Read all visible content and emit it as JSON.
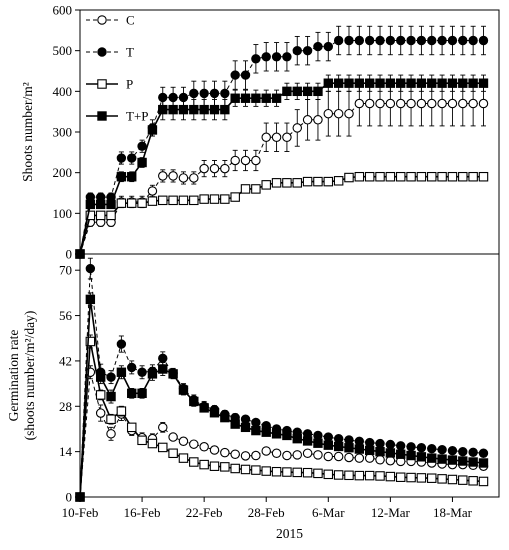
{
  "chart_data": [
    {
      "type": "line",
      "ylabel": "Shoots number/m²",
      "ylim": [
        0,
        600
      ],
      "yticks": [
        0,
        100,
        200,
        300,
        400,
        500,
        600
      ],
      "xlim": [
        0,
        40.5
      ],
      "grid": false,
      "legend_position": "top-left",
      "series": [
        {
          "name": "C",
          "marker": "open-circle",
          "line": "dashed",
          "color": "#000000",
          "x": [
            0,
            1,
            2,
            3,
            4,
            5,
            6,
            7,
            8,
            9,
            10,
            11,
            12,
            13,
            14,
            15,
            16,
            17,
            18,
            19,
            20,
            21,
            22,
            23,
            24,
            25,
            26,
            27,
            28,
            29,
            30,
            31,
            32,
            33,
            34,
            35,
            36,
            37,
            38,
            39
          ],
          "y": [
            0,
            78,
            78,
            78,
            128,
            128,
            128,
            155,
            192,
            192,
            187,
            187,
            210,
            210,
            210,
            230,
            230,
            230,
            287,
            287,
            287,
            310,
            330,
            330,
            345,
            345,
            345,
            370,
            370,
            370,
            370,
            370,
            370,
            370,
            370,
            370,
            370,
            370,
            370,
            370
          ],
          "err": [
            0,
            10,
            10,
            10,
            14,
            14,
            14,
            14,
            15,
            15,
            15,
            15,
            20,
            20,
            20,
            25,
            25,
            25,
            35,
            35,
            35,
            45,
            50,
            50,
            55,
            55,
            55,
            55,
            55,
            55,
            55,
            55,
            55,
            55,
            55,
            55,
            55,
            55,
            55,
            55
          ]
        },
        {
          "name": "T",
          "marker": "filled-circle",
          "line": "dashed",
          "color": "#000000",
          "x": [
            0,
            1,
            2,
            3,
            4,
            5,
            6,
            7,
            8,
            9,
            10,
            11,
            12,
            13,
            14,
            15,
            16,
            17,
            18,
            19,
            20,
            21,
            22,
            23,
            24,
            25,
            26,
            27,
            28,
            29,
            30,
            31,
            32,
            33,
            34,
            35,
            36,
            37,
            38,
            39
          ],
          "y": [
            0,
            140,
            140,
            140,
            236,
            236,
            265,
            310,
            385,
            385,
            385,
            395,
            395,
            395,
            395,
            440,
            440,
            480,
            485,
            485,
            485,
            500,
            500,
            510,
            510,
            525,
            525,
            525,
            525,
            525,
            525,
            525,
            525,
            525,
            525,
            525,
            525,
            525,
            525,
            525
          ],
          "err": [
            0,
            10,
            10,
            10,
            15,
            15,
            15,
            20,
            25,
            25,
            25,
            30,
            30,
            30,
            30,
            35,
            35,
            35,
            35,
            35,
            35,
            35,
            35,
            35,
            35,
            35,
            35,
            35,
            35,
            35,
            35,
            35,
            35,
            35,
            35,
            35,
            35,
            35,
            35,
            35
          ]
        },
        {
          "name": "P",
          "marker": "open-square",
          "line": "solid",
          "color": "#000000",
          "x": [
            0,
            1,
            2,
            3,
            4,
            5,
            6,
            7,
            8,
            9,
            10,
            11,
            12,
            13,
            14,
            15,
            16,
            17,
            18,
            19,
            20,
            21,
            22,
            23,
            24,
            25,
            26,
            27,
            28,
            29,
            30,
            31,
            32,
            33,
            34,
            35,
            36,
            37,
            38,
            39
          ],
          "y": [
            0,
            95,
            95,
            95,
            125,
            125,
            125,
            130,
            132,
            132,
            132,
            132,
            135,
            135,
            135,
            140,
            160,
            160,
            170,
            175,
            175,
            175,
            178,
            178,
            178,
            180,
            188,
            190,
            190,
            190,
            190,
            190,
            190,
            190,
            190,
            190,
            190,
            190,
            190,
            190
          ],
          "err": [
            0,
            8,
            8,
            8,
            8,
            8,
            8,
            8,
            8,
            8,
            8,
            8,
            8,
            8,
            8,
            8,
            8,
            8,
            10,
            10,
            10,
            10,
            10,
            10,
            10,
            10,
            10,
            10,
            10,
            10,
            10,
            10,
            10,
            10,
            10,
            10,
            10,
            10,
            10,
            10
          ]
        },
        {
          "name": "T+P",
          "marker": "filled-square",
          "line": "solid",
          "color": "#000000",
          "x": [
            0,
            1,
            2,
            3,
            4,
            5,
            6,
            7,
            8,
            9,
            10,
            11,
            12,
            13,
            14,
            15,
            16,
            17,
            18,
            19,
            20,
            21,
            22,
            23,
            24,
            25,
            26,
            27,
            28,
            29,
            30,
            31,
            32,
            33,
            34,
            35,
            36,
            37,
            38,
            39
          ],
          "y": [
            0,
            122,
            122,
            122,
            190,
            190,
            225,
            305,
            355,
            355,
            355,
            355,
            355,
            355,
            355,
            383,
            383,
            383,
            383,
            383,
            400,
            400,
            400,
            400,
            420,
            420,
            420,
            420,
            420,
            420,
            420,
            420,
            420,
            420,
            420,
            420,
            420,
            420,
            420,
            420
          ],
          "err": [
            0,
            10,
            10,
            10,
            12,
            12,
            12,
            15,
            25,
            25,
            25,
            25,
            25,
            25,
            25,
            20,
            20,
            20,
            20,
            20,
            20,
            20,
            20,
            20,
            20,
            20,
            20,
            20,
            20,
            20,
            20,
            20,
            20,
            20,
            20,
            20,
            20,
            20,
            20,
            20
          ]
        }
      ]
    },
    {
      "type": "line",
      "ylabel": "Germination rate",
      "ylabel2": "(shoots number/m²/day)",
      "ylim": [
        0,
        75
      ],
      "yticks": [
        0,
        14,
        28,
        42,
        56,
        70
      ],
      "xlim": [
        0,
        40.5
      ],
      "xlabel": "2015",
      "xticks": [
        0,
        6,
        12,
        18,
        24,
        30,
        36
      ],
      "xticklabels": [
        "10-Feb",
        "16-Feb",
        "22-Feb",
        "28-Feb",
        "6-Mar",
        "12-Mar",
        "18-Mar"
      ],
      "grid": false,
      "series": [
        {
          "name": "C",
          "marker": "open-circle",
          "line": "dashed",
          "color": "#000000",
          "x": [
            0,
            1,
            2,
            3,
            4,
            5,
            6,
            7,
            8,
            9,
            10,
            11,
            12,
            13,
            14,
            15,
            16,
            17,
            18,
            19,
            20,
            21,
            22,
            23,
            24,
            25,
            26,
            27,
            28,
            29,
            30,
            31,
            32,
            33,
            34,
            35,
            36,
            37,
            38,
            39
          ],
          "y": [
            0,
            38.5,
            25.9,
            19.5,
            25.6,
            20.5,
            18.3,
            18.0,
            21.5,
            18.5,
            17.2,
            16.3,
            15.5,
            14.5,
            13.7,
            13.2,
            12.7,
            12.8,
            14.2,
            13.5,
            12.8,
            13.0,
            13.5,
            13.0,
            12.5,
            12.5,
            12.2,
            12.0,
            12.0,
            11.5,
            11.2,
            11.0,
            11.0,
            10.8,
            10.5,
            10.2,
            10.0,
            10.0,
            9.8,
            9.5
          ],
          "err": [
            0,
            2,
            2.5,
            2,
            2,
            1.5,
            1.5,
            1.5,
            1.5,
            1,
            1,
            1,
            1,
            1,
            1,
            1,
            1,
            1,
            1,
            1,
            1,
            1,
            1,
            1,
            1,
            1,
            1,
            1,
            1,
            1,
            1,
            1,
            1,
            1,
            1,
            1,
            1,
            1,
            1,
            1
          ]
        },
        {
          "name": "T",
          "marker": "filled-circle",
          "line": "dashed",
          "color": "#000000",
          "x": [
            0,
            1,
            2,
            3,
            4,
            5,
            6,
            7,
            8,
            9,
            10,
            11,
            12,
            13,
            14,
            15,
            16,
            17,
            18,
            19,
            20,
            21,
            22,
            23,
            24,
            25,
            26,
            27,
            28,
            29,
            30,
            31,
            32,
            33,
            34,
            35,
            36,
            37,
            38,
            39
          ],
          "y": [
            0,
            70.5,
            38.5,
            37.0,
            47.2,
            40.0,
            38.5,
            38.8,
            42.8,
            38.2,
            33.5,
            30.0,
            28.0,
            27.0,
            25.5,
            24.5,
            24.0,
            23.0,
            22.0,
            21.0,
            20.5,
            20.0,
            19.5,
            19.0,
            18.5,
            18.0,
            17.6,
            17.2,
            16.8,
            16.5,
            16.2,
            15.8,
            15.5,
            15.2,
            14.9,
            14.6,
            14.3,
            14.0,
            13.8,
            13.5
          ],
          "err": [
            0,
            3.2,
            2.5,
            2,
            2.5,
            2,
            2,
            2,
            2,
            1.5,
            1.5,
            1.5,
            1.5,
            1.2,
            1.2,
            1.2,
            1,
            1,
            1,
            1,
            1,
            1,
            1,
            1,
            1,
            1,
            1,
            1,
            1,
            1,
            1,
            1,
            1,
            1,
            1,
            1,
            1,
            1,
            1,
            1
          ]
        },
        {
          "name": "P",
          "marker": "open-square",
          "line": "solid",
          "color": "#000000",
          "x": [
            0,
            1,
            2,
            3,
            4,
            5,
            6,
            7,
            8,
            9,
            10,
            11,
            12,
            13,
            14,
            15,
            16,
            17,
            18,
            19,
            20,
            21,
            22,
            23,
            24,
            25,
            26,
            27,
            28,
            29,
            30,
            31,
            32,
            33,
            34,
            35,
            36,
            37,
            38,
            39
          ],
          "y": [
            0,
            48.0,
            31.5,
            24.0,
            26.5,
            21.5,
            17.5,
            16.5,
            15.3,
            13.5,
            12.0,
            10.8,
            10.0,
            9.5,
            9.3,
            8.8,
            8.5,
            8.3,
            8.0,
            7.8,
            7.7,
            7.6,
            7.5,
            7.3,
            7.0,
            6.8,
            6.7,
            6.6,
            6.6,
            6.5,
            6.3,
            6.1,
            6.0,
            5.9,
            5.8,
            5.6,
            5.4,
            5.2,
            5.0,
            4.8
          ],
          "err": [
            0,
            2,
            1.5,
            1.5,
            1.5,
            1,
            1,
            1,
            1,
            1,
            0.8,
            0.8,
            0.8,
            0.8,
            0.8,
            0.8,
            0.6,
            0.6,
            0.6,
            0.6,
            0.6,
            0.6,
            0.6,
            0.6,
            0.6,
            0.6,
            0.6,
            0.6,
            0.6,
            0.6,
            0.6,
            0.6,
            0.6,
            0.6,
            0.6,
            0.6,
            0.6,
            0.6,
            0.6,
            0.6
          ]
        },
        {
          "name": "T+P",
          "marker": "filled-square",
          "line": "solid",
          "color": "#000000",
          "x": [
            0,
            1,
            2,
            3,
            4,
            5,
            6,
            7,
            8,
            9,
            10,
            11,
            12,
            13,
            14,
            15,
            16,
            17,
            18,
            19,
            20,
            21,
            22,
            23,
            24,
            25,
            26,
            27,
            28,
            29,
            30,
            31,
            32,
            33,
            34,
            35,
            36,
            37,
            38,
            39
          ],
          "y": [
            0,
            61.0,
            37.0,
            31.0,
            38.5,
            32.0,
            32.0,
            38.0,
            39.5,
            38.0,
            33.0,
            29.5,
            27.5,
            26.0,
            24.5,
            22.5,
            21.5,
            20.5,
            20.0,
            19.5,
            19.0,
            18.0,
            17.3,
            16.6,
            16.0,
            15.6,
            15.2,
            14.8,
            14.4,
            14.0,
            13.6,
            13.2,
            12.8,
            12.4,
            12.0,
            11.7,
            11.4,
            11.1,
            10.8,
            10.5
          ],
          "err": [
            0,
            2,
            2,
            2,
            2,
            1.5,
            1.5,
            2,
            2,
            1.5,
            1.5,
            1.5,
            1.2,
            1.2,
            1.2,
            1,
            1,
            1,
            1,
            1,
            1,
            1,
            1,
            1,
            1,
            1,
            1,
            1,
            1,
            1,
            1,
            1,
            1,
            1,
            1,
            1,
            1,
            1,
            1,
            1
          ]
        }
      ]
    }
  ]
}
